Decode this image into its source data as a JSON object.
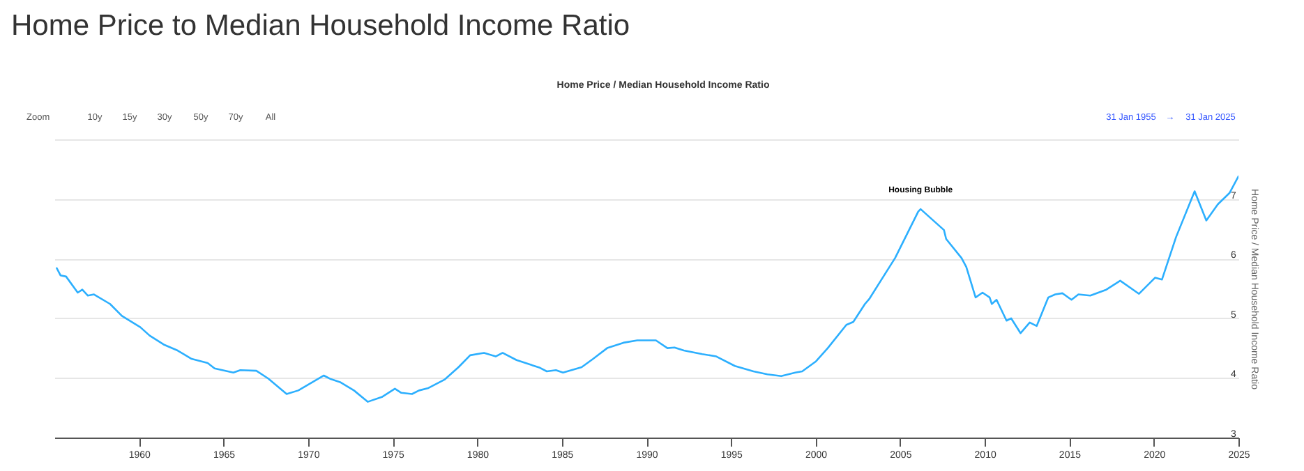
{
  "chart_data": {
    "type": "line",
    "title": "Home Price to Median Household Income Ratio",
    "subtitle": "Home Price / Median Household Income Ratio",
    "ylabel": "Home Price / Median Household Income Ratio",
    "x": [
      1955.14,
      1955.36,
      1955.69,
      1956.38,
      1956.65,
      1956.98,
      1957.34,
      1958.29,
      1958.99,
      1960.08,
      1960.63,
      1961.46,
      1962.28,
      1963.11,
      1964.06,
      1964.47,
      1965.58,
      1965.99,
      1966.94,
      1967.64,
      1968.73,
      1969.42,
      1970.93,
      1971.34,
      1971.89,
      1972.71,
      1973.53,
      1974.36,
      1975.13,
      1975.51,
      1976.14,
      1976.56,
      1977.11,
      1978.06,
      1978.89,
      1979.58,
      1980.4,
      1981.09,
      1981.5,
      1982.32,
      1983.7,
      1984.11,
      1984.65,
      1985.07,
      1986.17,
      1986.85,
      1987.68,
      1988.64,
      1989.46,
      1990.56,
      1991.24,
      1991.66,
      1992.21,
      1993.3,
      1994.13,
      1995.23,
      1996.33,
      1997.15,
      1997.97,
      1998.8,
      1999.21,
      2000.03,
      2000.72,
      2001.82,
      2002.23,
      2002.92,
      2003.19,
      2004.01,
      2004.7,
      2006.07,
      2006.21,
      2006.76,
      2007.59,
      2007.72,
      2008.63,
      2008.91,
      2009.46,
      2009.87,
      2010.29,
      2010.42,
      2010.7,
      2011.29,
      2011.56,
      2012.12,
      2012.66,
      2013.07,
      2013.76,
      2014.17,
      2014.59,
      2015.13,
      2015.54,
      2016.24,
      2017.19,
      2018.01,
      2019.12,
      2020.07,
      2020.48,
      2021.31,
      2022.41,
      2023.1,
      2023.78,
      2024.47,
      2025.0
    ],
    "series": [
      {
        "color": "#2caffe",
        "values": [
          5.84,
          5.72,
          5.7,
          5.43,
          5.48,
          5.38,
          5.4,
          5.24,
          5.04,
          4.85,
          4.71,
          4.56,
          4.46,
          4.32,
          4.25,
          4.16,
          4.09,
          4.13,
          4.12,
          3.99,
          3.73,
          3.79,
          4.04,
          3.98,
          3.93,
          3.79,
          3.6,
          3.68,
          3.82,
          3.75,
          3.73,
          3.79,
          3.83,
          3.97,
          4.18,
          4.38,
          4.42,
          4.36,
          4.42,
          4.3,
          4.17,
          4.11,
          4.13,
          4.09,
          4.18,
          4.32,
          4.5,
          4.59,
          4.63,
          4.63,
          4.5,
          4.51,
          4.46,
          4.4,
          4.36,
          4.2,
          4.11,
          4.06,
          4.03,
          4.09,
          4.11,
          4.28,
          4.5,
          4.89,
          4.94,
          5.24,
          5.33,
          5.7,
          6.01,
          6.79,
          6.83,
          6.69,
          6.48,
          6.33,
          6.01,
          5.86,
          5.35,
          5.43,
          5.35,
          5.24,
          5.31,
          4.96,
          5.0,
          4.75,
          4.93,
          4.87,
          5.35,
          5.4,
          5.42,
          5.31,
          5.4,
          5.38,
          5.48,
          5.63,
          5.41,
          5.68,
          5.65,
          6.36,
          7.13,
          6.64,
          6.91,
          7.1,
          7.38
        ]
      }
    ],
    "xlim": [
      1955,
      2025
    ],
    "xticks": [
      1960,
      1965,
      1970,
      1975,
      1980,
      1985,
      1990,
      1995,
      2000,
      2005,
      2010,
      2015,
      2020,
      2025
    ],
    "ylim": [
      3,
      8
    ],
    "yticks": [
      3,
      4,
      5,
      6,
      7,
      {
        "value": 8,
        "label": null
      }
    ],
    "grid": "y",
    "line_style": "solid",
    "annotations": [
      "Zoom",
      "10y",
      "15y",
      "30y",
      "50y",
      "70y",
      "All",
      "31 Jan 1955",
      "→",
      "31 Jan 2025",
      {
        "text": "Housing Bubble",
        "x": 2006.21,
        "y": 6.83
      }
    ]
  }
}
